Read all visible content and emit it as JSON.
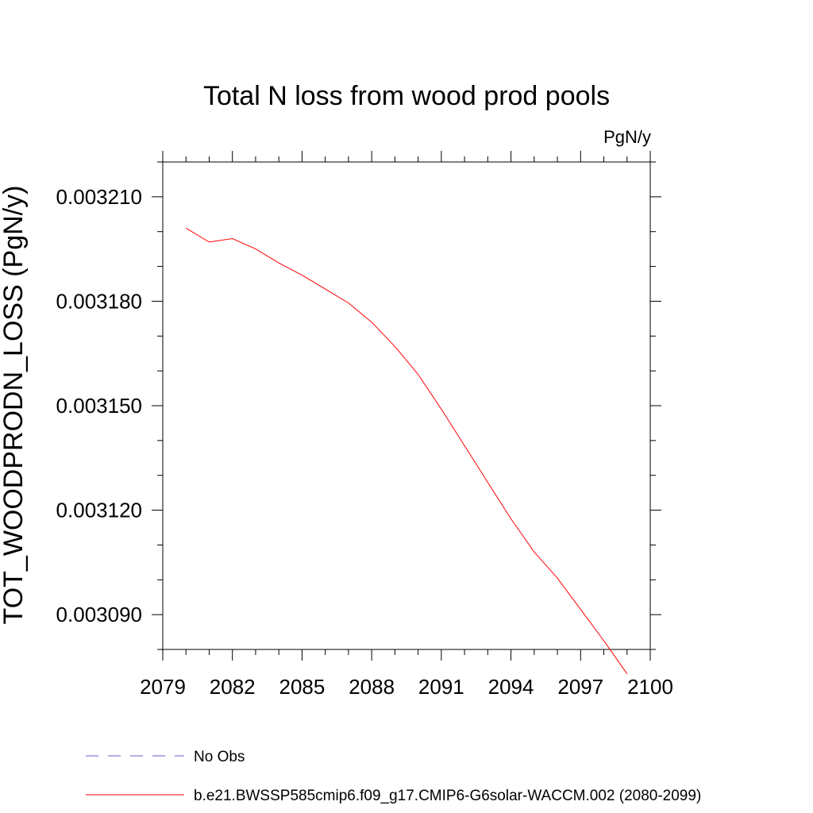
{
  "chart_data": {
    "type": "line",
    "title": "Total N loss from wood prod pools",
    "units_label": "PgN/y",
    "ylabel": "TOT_WOODPRODN_LOSS  (PgN/y)",
    "xlabel": "",
    "xlim": [
      2079,
      2100
    ],
    "ylim": [
      0.00308,
      0.00322
    ],
    "x_ticks": [
      2079,
      2082,
      2085,
      2088,
      2091,
      2094,
      2097,
      2100
    ],
    "x_tick_labels": [
      "2079",
      "2082",
      "2085",
      "2088",
      "2091",
      "2094",
      "2097",
      "2100"
    ],
    "y_ticks": [
      0.00309,
      0.00312,
      0.00315,
      0.00318,
      0.00321
    ],
    "y_tick_labels": [
      "0.003090",
      "0.003120",
      "0.003150",
      "0.003180",
      "0.003210"
    ],
    "y_minor_step": 1e-05,
    "x_minor_step": 1,
    "grid": false,
    "legend_position": "bottom",
    "series": [
      {
        "name": "No Obs",
        "color": "#6a5acd",
        "dash": "dashed",
        "x": [],
        "y": []
      },
      {
        "name": "b.e21.BWSSP585cmip6.f09_g17.CMIP6-G6solar-WACCM.002 (2080-2099)",
        "color": "#ff0000",
        "dash": "solid",
        "x": [
          2080,
          2081,
          2082,
          2083,
          2084,
          2085,
          2086,
          2087,
          2088,
          2089,
          2090,
          2091,
          2092,
          2093,
          2094,
          2095,
          2096,
          2097,
          2098,
          2099
        ],
        "y": [
          0.003201,
          0.003197,
          0.003198,
          0.003195,
          0.003191,
          0.0031875,
          0.0031835,
          0.0031795,
          0.003174,
          0.003167,
          0.003159,
          0.003149,
          0.0031385,
          0.003128,
          0.0031175,
          0.003108,
          0.0031005,
          0.0030915,
          0.0030825,
          0.003073
        ]
      }
    ]
  }
}
